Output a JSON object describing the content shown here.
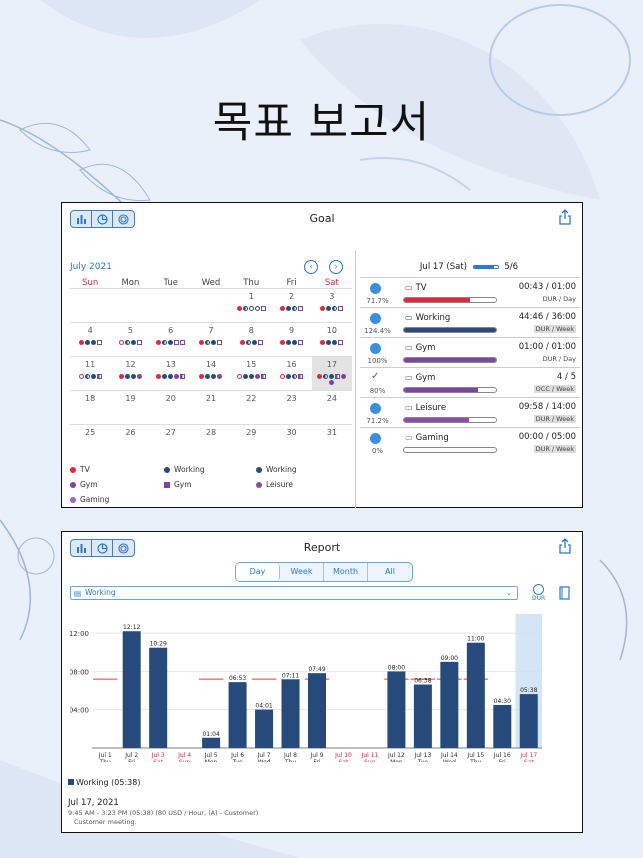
{
  "headline": "목표 보고서",
  "colors": {
    "tv": "#e3263d",
    "working": "#274b7a",
    "gym": "#7b45a0",
    "leisure": "#8a4ea6",
    "gaming": "#a466b8",
    "accent": "#2b78d0",
    "bar": "#264a7c",
    "goal_line": "#c94040"
  },
  "goal_panel": {
    "title": "Goal",
    "month": "July 2021",
    "weekdays": [
      "Sun",
      "Mon",
      "Tue",
      "Wed",
      "Thu",
      "Fri",
      "Sat"
    ],
    "weeks": [
      [
        "",
        "",
        "",
        "",
        "1",
        "2",
        "3"
      ],
      [
        "4",
        "5",
        "6",
        "7",
        "8",
        "9",
        "10"
      ],
      [
        "11",
        "12",
        "13",
        "14",
        "15",
        "16",
        "17"
      ],
      [
        "18",
        "19",
        "20",
        "21",
        "22",
        "23",
        "24"
      ],
      [
        "25",
        "26",
        "27",
        "28",
        "29",
        "30",
        "31"
      ]
    ],
    "legend": [
      {
        "label": "TV",
        "icon": "dot",
        "color": "#e3263d"
      },
      {
        "label": "Working",
        "icon": "dot",
        "color": "#274b7a"
      },
      {
        "label": "Working",
        "icon": "dot",
        "color": "#274b7a"
      },
      {
        "label": "Gym",
        "icon": "dot",
        "color": "#7b45a0"
      },
      {
        "label": "Gym",
        "icon": "square",
        "color": "#7b45a0"
      },
      {
        "label": "Leisure",
        "icon": "dot",
        "color": "#8a4ea6"
      },
      {
        "label": "Gaming",
        "icon": "dot",
        "color": "#a466b8"
      }
    ],
    "date_header": "Jul 17 (Sat)",
    "date_progress": "5/6",
    "date_progress_fraction": 0.83,
    "goals": [
      {
        "name": "TV",
        "pct": "71.7%",
        "value": "00:43 / 01:00",
        "unit": "DUR / Day",
        "fill": 0.72,
        "color": "#e3263d",
        "icon": "tv-icon",
        "status": "clock",
        "highlight": false
      },
      {
        "name": "Working",
        "pct": "124.4%",
        "value": "44:46 / 36:00",
        "unit": "DUR / Week",
        "fill": 1,
        "color": "#274b7a",
        "icon": "working-icon",
        "status": "clock",
        "highlight": true
      },
      {
        "name": "Gym",
        "pct": "100%",
        "value": "01:00 / 01:00",
        "unit": "DUR / Day",
        "fill": 1,
        "color": "#7b45a0",
        "icon": "gym-icon",
        "status": "clock",
        "highlight": false
      },
      {
        "name": "Gym",
        "pct": "80%",
        "value": "4 / 5",
        "unit": "OCC / Week",
        "fill": 0.8,
        "color": "#7b45a0",
        "icon": "gym-icon",
        "status": "check",
        "highlight": true
      },
      {
        "name": "Leisure",
        "pct": "71.2%",
        "value": "09:58 / 14:00",
        "unit": "DUR / Week",
        "fill": 0.71,
        "color": "#8a4ea6",
        "icon": "tag-icon",
        "status": "clock",
        "highlight": true
      },
      {
        "name": "Gaming",
        "pct": "0%",
        "value": "00:00 / 05:00",
        "unit": "DUR / Week",
        "fill": 0,
        "color": "#a466b8",
        "icon": "gaming-icon",
        "status": "clock",
        "highlight": true
      }
    ]
  },
  "report_panel": {
    "title": "Report",
    "tabs": [
      "Day",
      "Week",
      "Month",
      "All"
    ],
    "selected_tab": "Day",
    "activity": "Working",
    "dur_label": "DUR",
    "legend_label": "Working (05:38)",
    "detail_date": "Jul 17, 2021",
    "detail_line": "9:45 AM - 3:23 PM (05:38) (80 USD / Hour, (A) - Customer)",
    "detail_note": "Customer meeting."
  },
  "chart_data": {
    "type": "bar",
    "title": "",
    "xlabel": "",
    "ylabel": "",
    "ylim": [
      0,
      14
    ],
    "yticks": [
      "04:00",
      "08:00",
      "12:00"
    ],
    "goal_value": 7.2,
    "categories": [
      {
        "date": "Jul 1",
        "day": "Thu",
        "weekend": false
      },
      {
        "date": "Jul 2",
        "day": "Fri",
        "weekend": false
      },
      {
        "date": "Jul 3",
        "day": "Sat",
        "weekend": true
      },
      {
        "date": "Jul 4",
        "day": "Sun",
        "weekend": true
      },
      {
        "date": "Jul 5",
        "day": "Mon",
        "weekend": false
      },
      {
        "date": "Jul 6",
        "day": "Tue",
        "weekend": false
      },
      {
        "date": "Jul 7",
        "day": "Wed",
        "weekend": false
      },
      {
        "date": "Jul 8",
        "day": "Thu",
        "weekend": false
      },
      {
        "date": "Jul 9",
        "day": "Fri",
        "weekend": false
      },
      {
        "date": "Jul 10",
        "day": "Sat",
        "weekend": true
      },
      {
        "date": "Jul 11",
        "day": "Sun",
        "weekend": true
      },
      {
        "date": "Jul 12",
        "day": "Mon",
        "weekend": false
      },
      {
        "date": "Jul 13",
        "day": "Tue",
        "weekend": false
      },
      {
        "date": "Jul 14",
        "day": "Wed",
        "weekend": false
      },
      {
        "date": "Jul 15",
        "day": "Thu",
        "weekend": false
      },
      {
        "date": "Jul 16",
        "day": "Fri",
        "weekend": false
      },
      {
        "date": "Jul 17",
        "day": "Sat",
        "weekend": true
      }
    ],
    "values": [
      null,
      12.2,
      10.48,
      null,
      1.07,
      6.88,
      4.02,
      7.18,
      7.82,
      null,
      null,
      8.0,
      6.63,
      9.0,
      11.0,
      4.5,
      5.63
    ],
    "labels": [
      "",
      "12:12",
      "10:29",
      "",
      "01:04",
      "06:53",
      "04:01",
      "07:11",
      "07:49",
      "",
      "",
      "08:00",
      "06:38",
      "09:00",
      "11:00",
      "04:30",
      "05:38"
    ],
    "goal_shown": [
      true,
      false,
      false,
      false,
      true,
      false,
      true,
      false,
      true,
      false,
      false,
      true,
      true,
      true,
      true,
      false,
      false
    ],
    "highlight_index": 16
  }
}
